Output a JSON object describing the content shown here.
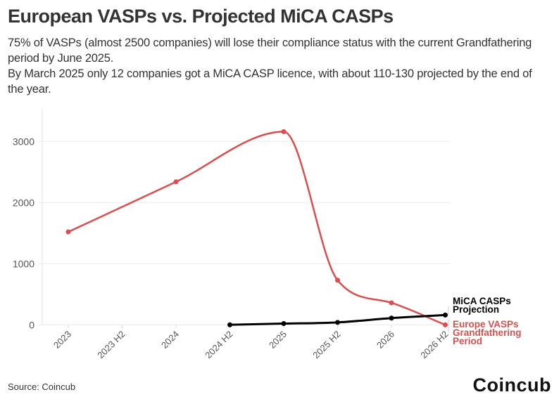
{
  "title": "European VASPs vs. Projected MiCA CASPs",
  "subtitle": [
    "75% of VASPs (almost 2500 companies) will lose their compliance status with the current Grandfathering period by June 2025.",
    "By March 2025 only 12 companies got a MiCA CASP licence, with about 110-130 projected by the end of the year."
  ],
  "source": "Source: Coincub",
  "logo": "Coincub",
  "chart_data": {
    "type": "line",
    "title": "European VASPs vs. Projected MiCA CASPs",
    "categories": [
      "2023",
      "2023 H2",
      "2024",
      "2024 H2",
      "2025",
      "2025 H2",
      "2026",
      "2026 H2"
    ],
    "ylim": [
      0,
      3500
    ],
    "yticks": [
      0,
      1000,
      2000,
      3000
    ],
    "grid": true,
    "curve": "smooth",
    "series": [
      {
        "name": "Europe VASPs Grandfathering Period",
        "label_lines": [
          "Europe VASPs",
          "Grandfathering",
          "Period"
        ],
        "color": "#d94f4f",
        "values": [
          1520,
          null,
          2340,
          null,
          3160,
          730,
          360,
          0
        ]
      },
      {
        "name": "MiCA CASPs Projection",
        "label_lines": [
          "MiCA CASPs",
          "Projection"
        ],
        "color": "#000000",
        "values": [
          null,
          null,
          null,
          0,
          20,
          40,
          110,
          160
        ]
      }
    ]
  }
}
